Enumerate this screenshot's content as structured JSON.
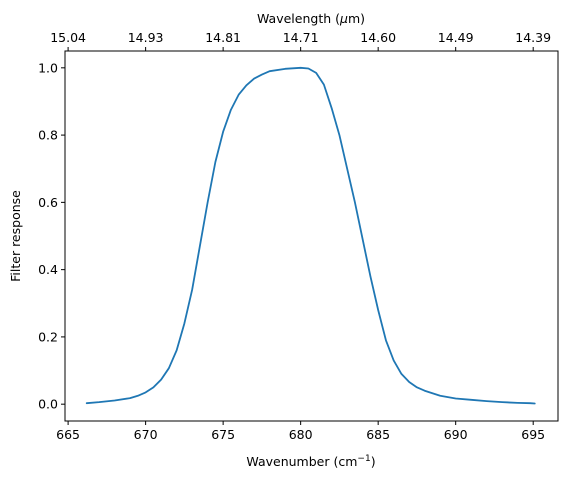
{
  "chart_data": {
    "type": "line",
    "title": "",
    "xlabel": "Wavenumber (cm",
    "xlabel_sup": "−1",
    "xlabel_tail": ")",
    "ylabel": "Filter response",
    "top_axis_label": "Wavelength (",
    "top_axis_label_unit": "μ",
    "top_axis_label_tail": "m)",
    "xlim": [
      664.8,
      696.6
    ],
    "ylim": [
      -0.05,
      1.05
    ],
    "x_ticks": [
      665,
      670,
      675,
      680,
      685,
      690,
      695
    ],
    "y_ticks": [
      0.0,
      0.2,
      0.4,
      0.6,
      0.8,
      1.0
    ],
    "y_tick_labels": [
      "0.0",
      "0.2",
      "0.4",
      "0.6",
      "0.8",
      "1.0"
    ],
    "top_ticks": [
      "15.04",
      "14.93",
      "14.81",
      "14.71",
      "14.60",
      "14.49",
      "14.39"
    ],
    "grid": false,
    "color": "#1f77b4",
    "series": [
      {
        "x": [
          666.2,
          667,
          668,
          669,
          669.5,
          670,
          670.5,
          671,
          671.5,
          672,
          672.5,
          673,
          673.5,
          674,
          674.5,
          675,
          675.5,
          676,
          676.5,
          677,
          677.5,
          678,
          679,
          680,
          680.5,
          681,
          681.5,
          682,
          682.5,
          683,
          683.5,
          684,
          684.5,
          685,
          685.5,
          686,
          686.5,
          687,
          687.5,
          688,
          689,
          690,
          691,
          692,
          693,
          694,
          694.8,
          695.1
        ],
        "y": [
          0.003,
          0.006,
          0.011,
          0.018,
          0.025,
          0.035,
          0.05,
          0.073,
          0.107,
          0.16,
          0.24,
          0.34,
          0.47,
          0.6,
          0.72,
          0.81,
          0.875,
          0.92,
          0.948,
          0.968,
          0.98,
          0.99,
          0.997,
          1.0,
          0.998,
          0.985,
          0.95,
          0.88,
          0.8,
          0.7,
          0.6,
          0.49,
          0.38,
          0.28,
          0.19,
          0.13,
          0.09,
          0.066,
          0.05,
          0.04,
          0.025,
          0.017,
          0.013,
          0.009,
          0.006,
          0.004,
          0.003,
          0.002
        ]
      }
    ]
  }
}
